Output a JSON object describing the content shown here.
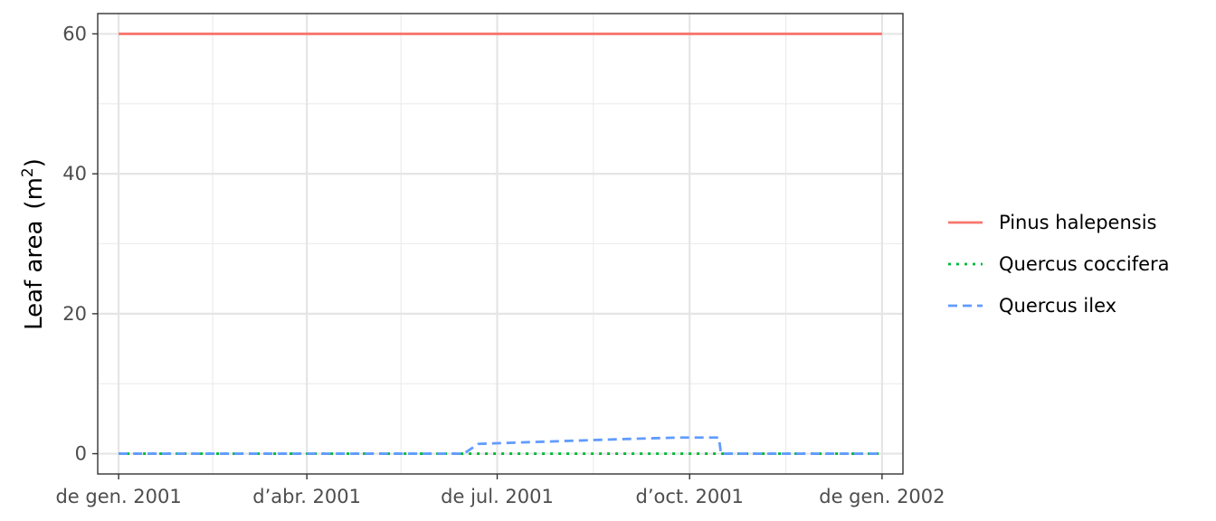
{
  "chart_data": {
    "type": "line",
    "ylabel": "Leaf area",
    "ylabel_unit": "(m²)",
    "ylabel_unit_base": "(m",
    "ylabel_unit_exp": "2",
    "ylabel_unit_close": ")",
    "xlim": [
      "2000-12-22",
      "2002-01-11"
    ],
    "ylim": [
      -2.9,
      62.9
    ],
    "x_ticks": [
      {
        "date": "2001-01-01",
        "label": "de gen. 2001"
      },
      {
        "date": "2001-04-01",
        "label": "d’abr. 2001"
      },
      {
        "date": "2001-07-01",
        "label": "de jul. 2001"
      },
      {
        "date": "2001-10-01",
        "label": "d’oct. 2001"
      },
      {
        "date": "2002-01-01",
        "label": "de gen. 2002"
      }
    ],
    "x_minor_ticks": [
      "2001-02-15",
      "2001-05-16",
      "2001-08-16",
      "2001-11-16"
    ],
    "y_ticks": [
      0,
      20,
      40,
      60
    ],
    "y_minor_ticks": [
      10,
      30,
      50
    ],
    "grid": true,
    "legend_position": "right",
    "series": [
      {
        "name": "Pinus halepensis",
        "color": "#F8766D",
        "dash": "solid",
        "points": [
          [
            "2001-01-01",
            60
          ],
          [
            "2002-01-01",
            60
          ]
        ]
      },
      {
        "name": "Quercus coccifera",
        "color": "#00BA38",
        "dash": "dotted",
        "points": [
          [
            "2001-01-01",
            0
          ],
          [
            "2002-01-01",
            0
          ]
        ]
      },
      {
        "name": "Quercus ilex",
        "color": "#619CFF",
        "dash": "dashed",
        "points": [
          [
            "2001-01-01",
            0
          ],
          [
            "2001-06-15",
            0
          ],
          [
            "2001-06-22",
            1.4
          ],
          [
            "2001-08-01",
            1.8
          ],
          [
            "2001-09-01",
            2.1
          ],
          [
            "2001-09-25",
            2.3
          ],
          [
            "2001-10-15",
            2.3
          ],
          [
            "2001-10-16",
            0
          ],
          [
            "2002-01-01",
            0
          ]
        ]
      }
    ]
  }
}
